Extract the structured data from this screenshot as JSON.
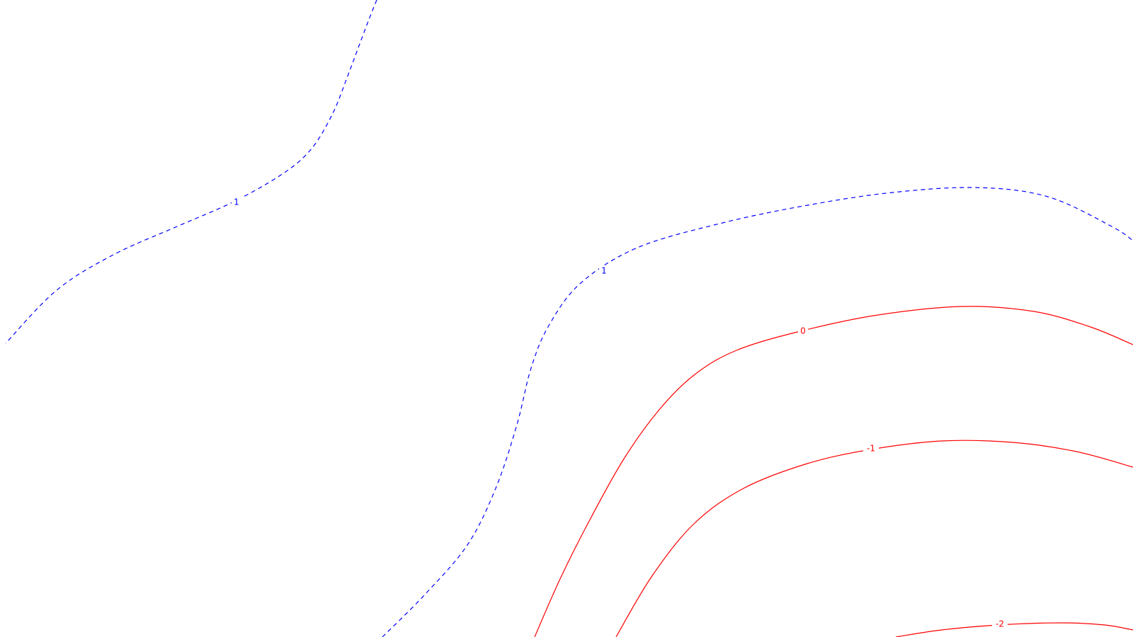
{
  "chart_data": {
    "type": "contour",
    "title": "",
    "xlabel": "",
    "ylabel": "",
    "grid": false,
    "legend": "none",
    "colors": {
      "positive": "#0000ff",
      "negative": "#ff0000"
    },
    "series": [
      {
        "level": "1",
        "style": "dashed",
        "color": "#0000ff",
        "points": [
          [
            532,
            0
          ],
          [
            520,
            30
          ],
          [
            505,
            70
          ],
          [
            490,
            110
          ],
          [
            470,
            160
          ],
          [
            440,
            210
          ],
          [
            400,
            245
          ],
          [
            330,
            285
          ],
          [
            250,
            320
          ],
          [
            160,
            360
          ],
          [
            80,
            410
          ],
          [
            8,
            485
          ]
        ]
      },
      {
        "level": "1",
        "style": "dashed",
        "color": "#0000ff",
        "points": [
          [
            540,
            900
          ],
          [
            600,
            840
          ],
          [
            660,
            770
          ],
          [
            700,
            690
          ],
          [
            730,
            600
          ],
          [
            750,
            520
          ],
          [
            775,
            460
          ],
          [
            820,
            400
          ],
          [
            900,
            350
          ],
          [
            1020,
            315
          ],
          [
            1140,
            290
          ],
          [
            1260,
            272
          ],
          [
            1380,
            265
          ],
          [
            1480,
            278
          ],
          [
            1570,
            320
          ],
          [
            1600,
            340
          ]
        ]
      },
      {
        "level": "0",
        "style": "solid",
        "color": "#ff0000",
        "points": [
          [
            755,
            900
          ],
          [
            790,
            820
          ],
          [
            830,
            740
          ],
          [
            880,
            650
          ],
          [
            930,
            580
          ],
          [
            980,
            530
          ],
          [
            1040,
            495
          ],
          [
            1130,
            468
          ],
          [
            1240,
            445
          ],
          [
            1360,
            433
          ],
          [
            1460,
            440
          ],
          [
            1540,
            462
          ],
          [
            1600,
            487
          ]
        ]
      },
      {
        "level": "-1",
        "style": "solid",
        "color": "#ff0000",
        "points": [
          [
            870,
            900
          ],
          [
            920,
            815
          ],
          [
            980,
            740
          ],
          [
            1050,
            690
          ],
          [
            1140,
            655
          ],
          [
            1230,
            635
          ],
          [
            1330,
            623
          ],
          [
            1430,
            625
          ],
          [
            1520,
            638
          ],
          [
            1600,
            660
          ]
        ]
      },
      {
        "level": "-2",
        "style": "solid",
        "color": "#ff0000",
        "points": [
          [
            1265,
            900
          ],
          [
            1330,
            890
          ],
          [
            1410,
            883
          ],
          [
            1500,
            880
          ],
          [
            1560,
            883
          ],
          [
            1600,
            890
          ]
        ]
      }
    ],
    "labels": [
      {
        "text": "1",
        "color": "#0000ff",
        "at": [
          334,
          286
        ]
      },
      {
        "text": "1",
        "color": "#0000ff",
        "at": [
          853,
          383
        ]
      },
      {
        "text": "0",
        "color": "#ff0000",
        "at": [
          1134,
          468
        ]
      },
      {
        "text": "-1",
        "color": "#ff0000",
        "at": [
          1230,
          634
        ]
      },
      {
        "text": "-2",
        "color": "#ff0000",
        "at": [
          1412,
          882
        ]
      }
    ]
  }
}
